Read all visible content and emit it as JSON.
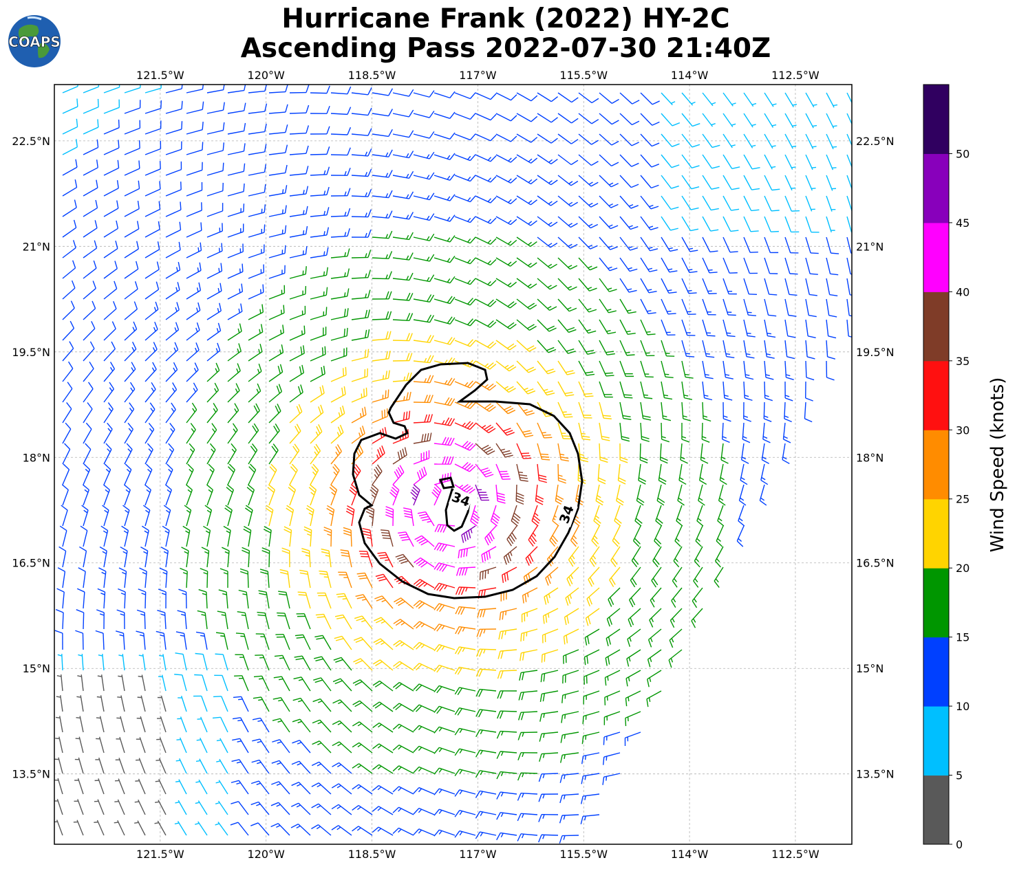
{
  "title": {
    "line1": "Hurricane Frank (2022) HY-2C",
    "line2": "Ascending Pass 2022-07-30 21:40Z"
  },
  "logo": {
    "text": "COAPS",
    "icon": "globe-logo-icon"
  },
  "map": {
    "lon_ticks": [
      "121.5°W",
      "120°W",
      "118.5°W",
      "117°W",
      "115.5°W",
      "114°W",
      "112.5°W"
    ],
    "lat_ticks": [
      "22.5°N",
      "21°N",
      "19.5°N",
      "18°N",
      "16.5°N",
      "15°N",
      "13.5°N"
    ],
    "lon_values": [
      -121.5,
      -120,
      -118.5,
      -117,
      -115.5,
      -114,
      -112.5
    ],
    "lat_values": [
      22.5,
      21,
      19.5,
      18,
      16.5,
      15,
      13.5
    ],
    "extent": {
      "lon_min": -123,
      "lon_max": -111.7,
      "lat_min": 12.5,
      "lat_max": 23.3
    },
    "storm_center": {
      "lon": -117.4,
      "lat": 17.3
    },
    "contour_label": "34",
    "gridlines": true
  },
  "colorbar": {
    "label": "Wind Speed (knots)",
    "ticks": [
      "0",
      "5",
      "10",
      "15",
      "20",
      "25",
      "30",
      "35",
      "40",
      "45",
      "50"
    ],
    "colors": [
      "#595959",
      "#00bfff",
      "#0040ff",
      "#009600",
      "#ffd400",
      "#ff8c00",
      "#ff1010",
      "#7f3c28",
      "#ff00ff",
      "#8800bb",
      "#300060"
    ]
  }
}
